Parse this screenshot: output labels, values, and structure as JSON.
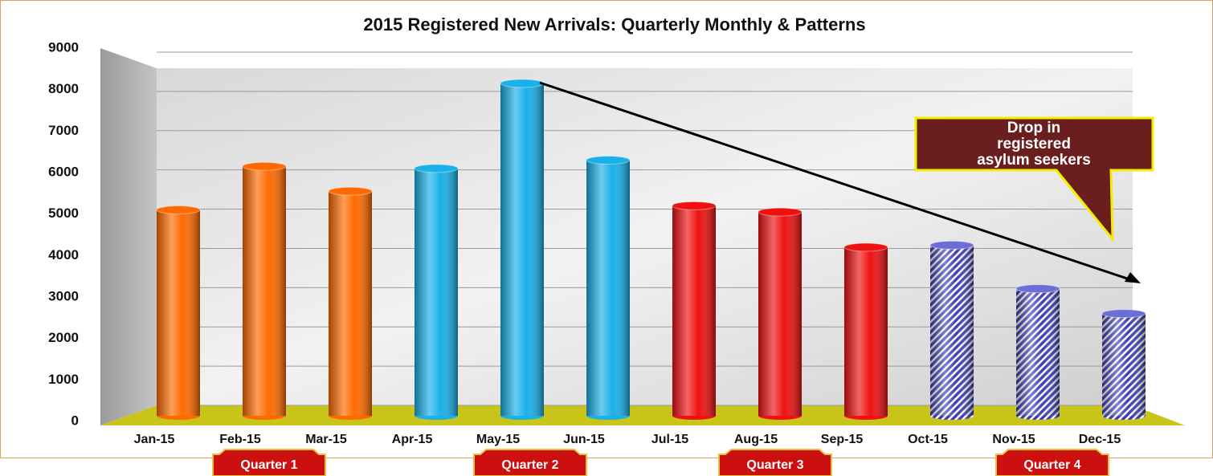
{
  "chart_data": {
    "type": "bar",
    "title": "2015 Registered New Arrivals: Quarterly Monthly & Patterns",
    "categories": [
      "Jan-15",
      "Feb-15",
      "Mar-15",
      "Apr-15",
      "May-15",
      "Jun-15",
      "Jul-15",
      "Aug-15",
      "Sep-15",
      "Oct-15",
      "Nov-15",
      "Dec-15"
    ],
    "values": [
      5100,
      6150,
      5550,
      6100,
      8150,
      6300,
      5200,
      5050,
      4200,
      4250,
      3200,
      2600
    ],
    "colors": [
      "#ff6a00",
      "#ff6a00",
      "#ff6a00",
      "#1ab0e8",
      "#1ab0e8",
      "#1ab0e8",
      "#ee1111",
      "#ee1111",
      "#ee1111",
      "#3d3db8",
      "#3d3db8",
      "#3d3db8"
    ],
    "ylim": [
      0,
      9000
    ],
    "yticks": [
      0,
      1000,
      2000,
      3000,
      4000,
      5000,
      6000,
      7000,
      8000,
      9000
    ],
    "grid": true,
    "quarter_labels": [
      "Quarter 1",
      "Quarter 2",
      "Quarter 3",
      "Quarter 4"
    ],
    "callout": [
      "Drop in",
      "registered",
      "asylum seekers"
    ]
  }
}
